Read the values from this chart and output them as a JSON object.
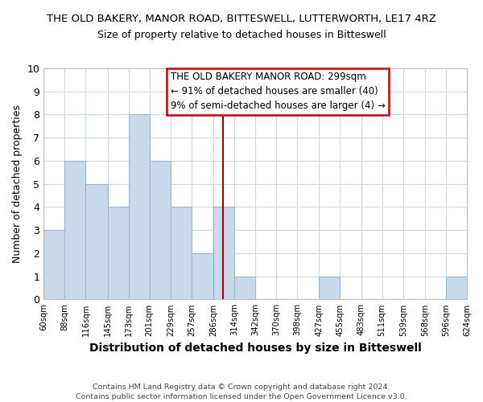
{
  "title": "THE OLD BAKERY, MANOR ROAD, BITTESWELL, LUTTERWORTH, LE17 4RZ",
  "subtitle": "Size of property relative to detached houses in Bitteswell",
  "xlabel": "Distribution of detached houses by size in Bitteswell",
  "ylabel": "Number of detached properties",
  "bar_edges": [
    60,
    88,
    116,
    145,
    173,
    201,
    229,
    257,
    286,
    314,
    342,
    370,
    398,
    427,
    455,
    483,
    511,
    539,
    568,
    596,
    624
  ],
  "bar_heights": [
    3,
    6,
    5,
    4,
    8,
    6,
    4,
    2,
    4,
    1,
    0,
    0,
    0,
    1,
    0,
    0,
    0,
    0,
    0,
    1
  ],
  "bar_color": "#c8d9ea",
  "bar_edgecolor": "#9ab8cc",
  "reference_line_x": 299,
  "ylim": [
    0,
    10
  ],
  "yticks": [
    0,
    1,
    2,
    3,
    4,
    5,
    6,
    7,
    8,
    9,
    10
  ],
  "tick_labels": [
    "60sqm",
    "88sqm",
    "116sqm",
    "145sqm",
    "173sqm",
    "201sqm",
    "229sqm",
    "257sqm",
    "286sqm",
    "314sqm",
    "342sqm",
    "370sqm",
    "398sqm",
    "427sqm",
    "455sqm",
    "483sqm",
    "511sqm",
    "539sqm",
    "568sqm",
    "596sqm",
    "624sqm"
  ],
  "annotation_title": "THE OLD BAKERY MANOR ROAD: 299sqm",
  "annotation_line1": "← 91% of detached houses are smaller (40)",
  "annotation_line2": "9% of semi-detached houses are larger (4) →",
  "footer1": "Contains HM Land Registry data © Crown copyright and database right 2024.",
  "footer2": "Contains public sector information licensed under the Open Government Licence v3.0.",
  "bg_color": "#ffffff",
  "grid_color": "#cdd8e3",
  "ref_line_color": "#aa0000"
}
